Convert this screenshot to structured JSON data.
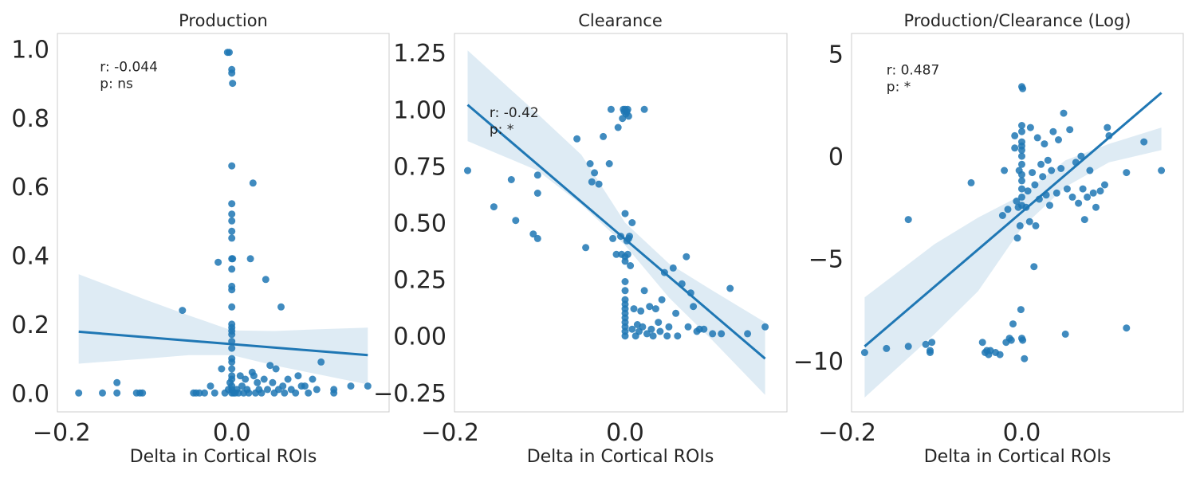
{
  "chart_data": [
    {
      "type": "scatter",
      "title": "Production",
      "xlabel": "Delta in Cortical ROIs",
      "ylabel": "",
      "xlim": [
        -0.205,
        0.185
      ],
      "ylim": [
        -0.055,
        1.045
      ],
      "xticks": [
        -0.2,
        0.0
      ],
      "xtick_labels": [
        "−0.2",
        "0.0"
      ],
      "yticks": [
        0.0,
        0.2,
        0.4,
        0.6,
        0.8,
        1.0
      ],
      "ytick_labels": [
        "0.0",
        "0.2",
        "0.4",
        "0.6",
        "0.8",
        "1.0"
      ],
      "grid": false,
      "annotation": {
        "r": "r: -0.044",
        "p": "p: ns",
        "x": -0.155,
        "y": 0.935
      },
      "regression": {
        "x": [
          -0.18,
          0.16
        ],
        "y": [
          0.178,
          0.11
        ]
      },
      "ci_upper": {
        "x": [
          -0.18,
          -0.1,
          -0.05,
          0.0,
          0.05,
          0.1,
          0.16
        ],
        "y": [
          0.345,
          0.27,
          0.225,
          0.182,
          0.18,
          0.185,
          0.19
        ]
      },
      "ci_lower": {
        "x": [
          -0.18,
          -0.1,
          -0.05,
          0.0,
          0.05,
          0.1,
          0.16
        ],
        "y": [
          0.085,
          0.1,
          0.11,
          0.11,
          0.08,
          0.055,
          0.025
        ]
      },
      "points": [
        [
          -0.18,
          0.0
        ],
        [
          -0.152,
          0.0
        ],
        [
          -0.135,
          0.03
        ],
        [
          -0.135,
          0.0
        ],
        [
          -0.112,
          0.0
        ],
        [
          -0.108,
          0.0
        ],
        [
          -0.105,
          0.0
        ],
        [
          -0.058,
          0.24
        ],
        [
          -0.045,
          0.0
        ],
        [
          -0.042,
          0.0
        ],
        [
          -0.038,
          0.0
        ],
        [
          -0.032,
          0.0
        ],
        [
          -0.025,
          0.02
        ],
        [
          -0.02,
          0.0
        ],
        [
          -0.016,
          0.38
        ],
        [
          -0.012,
          0.07
        ],
        [
          -0.008,
          0.0
        ],
        [
          -0.005,
          0.99
        ],
        [
          -0.003,
          0.99
        ],
        [
          -0.004,
          0.01
        ],
        [
          -0.002,
          0.03
        ],
        [
          0.0,
          0.94
        ],
        [
          0.0,
          0.93
        ],
        [
          0.001,
          0.9
        ],
        [
          0.0,
          0.66
        ],
        [
          0.0,
          0.55
        ],
        [
          0.0,
          0.52
        ],
        [
          0.0,
          0.5
        ],
        [
          0.0,
          0.47
        ],
        [
          0.0,
          0.45
        ],
        [
          0.0,
          0.39
        ],
        [
          0.001,
          0.39
        ],
        [
          0.0,
          0.36
        ],
        [
          0.0,
          0.31
        ],
        [
          0.0,
          0.3
        ],
        [
          0.0,
          0.25
        ],
        [
          0.0,
          0.2
        ],
        [
          0.0,
          0.19
        ],
        [
          0.0,
          0.18
        ],
        [
          0.0,
          0.17
        ],
        [
          0.0,
          0.15
        ],
        [
          0.0,
          0.13
        ],
        [
          0.0,
          0.1
        ],
        [
          0.0,
          0.09
        ],
        [
          0.0,
          0.07
        ],
        [
          0.0,
          0.05
        ],
        [
          0.0,
          0.04
        ],
        [
          0.0,
          0.02
        ],
        [
          0.0,
          0.01
        ],
        [
          0.0,
          0.0
        ],
        [
          0.002,
          0.0
        ],
        [
          0.004,
          0.0
        ],
        [
          0.006,
          0.01
        ],
        [
          0.008,
          0.0
        ],
        [
          0.01,
          0.05
        ],
        [
          0.012,
          0.02
        ],
        [
          0.014,
          0.0
        ],
        [
          0.016,
          0.04
        ],
        [
          0.018,
          0.01
        ],
        [
          0.02,
          0.0
        ],
        [
          0.022,
          0.39
        ],
        [
          0.024,
          0.06
        ],
        [
          0.025,
          0.61
        ],
        [
          0.026,
          0.05
        ],
        [
          0.028,
          0.0
        ],
        [
          0.03,
          0.03
        ],
        [
          0.032,
          0.01
        ],
        [
          0.035,
          0.0
        ],
        [
          0.038,
          0.04
        ],
        [
          0.04,
          0.33
        ],
        [
          0.042,
          0.01
        ],
        [
          0.045,
          0.08
        ],
        [
          0.048,
          0.03
        ],
        [
          0.05,
          0.0
        ],
        [
          0.052,
          0.07
        ],
        [
          0.055,
          0.01
        ],
        [
          0.058,
          0.25
        ],
        [
          0.06,
          0.02
        ],
        [
          0.062,
          0.0
        ],
        [
          0.066,
          0.04
        ],
        [
          0.07,
          0.01
        ],
        [
          0.075,
          0.0
        ],
        [
          0.078,
          0.05
        ],
        [
          0.082,
          0.02
        ],
        [
          0.086,
          0.02
        ],
        [
          0.09,
          0.0
        ],
        [
          0.095,
          0.04
        ],
        [
          0.1,
          0.01
        ],
        [
          0.105,
          0.09
        ],
        [
          0.12,
          0.01
        ],
        [
          0.12,
          0.0
        ],
        [
          0.14,
          0.02
        ],
        [
          0.16,
          0.02
        ]
      ]
    },
    {
      "type": "scatter",
      "title": "Clearance",
      "xlabel": "Delta in Cortical ROIs",
      "ylabel": "",
      "xlim": [
        -0.195,
        0.185
      ],
      "ylim": [
        -0.335,
        1.335
      ],
      "xticks": [
        -0.2,
        0.0
      ],
      "xtick_labels": [
        "−0.2",
        "0.0"
      ],
      "yticks": [
        -0.25,
        0.0,
        0.25,
        0.5,
        0.75,
        1.0,
        1.25
      ],
      "ytick_labels": [
        "−0.25",
        "0.00",
        "0.25",
        "0.50",
        "0.75",
        "1.00",
        "1.25"
      ],
      "grid": false,
      "annotation": {
        "r": "r: -0.42",
        "p": "p: *",
        "x": -0.155,
        "y": 0.965
      },
      "regression": {
        "x": [
          -0.18,
          0.16
        ],
        "y": [
          1.02,
          -0.1
        ]
      },
      "ci_upper": {
        "x": [
          -0.18,
          -0.1,
          -0.05,
          0.0,
          0.05,
          0.1,
          0.16
        ],
        "y": [
          1.26,
          0.98,
          0.8,
          0.5,
          0.32,
          0.2,
          0.06
        ]
      },
      "ci_lower": {
        "x": [
          -0.18,
          -0.1,
          -0.05,
          0.0,
          0.05,
          0.1,
          0.16
        ],
        "y": [
          0.86,
          0.73,
          0.58,
          0.4,
          0.17,
          -0.02,
          -0.26
        ]
      },
      "points": [
        [
          -0.18,
          0.73
        ],
        [
          -0.15,
          0.57
        ],
        [
          -0.13,
          0.69
        ],
        [
          -0.125,
          0.51
        ],
        [
          -0.105,
          0.45
        ],
        [
          -0.1,
          0.43
        ],
        [
          -0.1,
          0.71
        ],
        [
          -0.1,
          0.63
        ],
        [
          -0.055,
          0.87
        ],
        [
          -0.045,
          0.39
        ],
        [
          -0.04,
          0.76
        ],
        [
          -0.038,
          0.68
        ],
        [
          -0.035,
          0.72
        ],
        [
          -0.03,
          0.67
        ],
        [
          -0.025,
          0.88
        ],
        [
          -0.018,
          0.76
        ],
        [
          -0.016,
          1.0
        ],
        [
          -0.014,
          0.43
        ],
        [
          -0.01,
          0.36
        ],
        [
          -0.008,
          0.92
        ],
        [
          -0.005,
          0.44
        ],
        [
          -0.004,
          0.36
        ],
        [
          -0.003,
          0.96
        ],
        [
          -0.002,
          1.0
        ],
        [
          -0.001,
          0.99
        ],
        [
          0.0,
          1.0
        ],
        [
          0.001,
          0.98
        ],
        [
          0.002,
          0.99
        ],
        [
          0.003,
          1.0
        ],
        [
          0.004,
          0.97
        ],
        [
          0.0,
          0.54
        ],
        [
          0.002,
          0.42
        ],
        [
          0.004,
          0.43
        ],
        [
          0.0,
          0.35
        ],
        [
          0.0,
          0.33
        ],
        [
          0.0,
          0.24
        ],
        [
          0.0,
          0.2
        ],
        [
          0.0,
          0.16
        ],
        [
          0.0,
          0.14
        ],
        [
          0.0,
          0.12
        ],
        [
          0.0,
          0.1
        ],
        [
          0.0,
          0.08
        ],
        [
          0.0,
          0.06
        ],
        [
          0.0,
          0.04
        ],
        [
          0.0,
          0.02
        ],
        [
          0.0,
          0.0
        ],
        [
          0.003,
          0.36
        ],
        [
          0.005,
          0.44
        ],
        [
          0.006,
          0.31
        ],
        [
          0.008,
          0.5
        ],
        [
          0.008,
          0.03
        ],
        [
          0.01,
          0.12
        ],
        [
          0.012,
          0.0
        ],
        [
          0.014,
          0.05
        ],
        [
          0.016,
          0.02
        ],
        [
          0.018,
          0.11
        ],
        [
          0.02,
          0.04
        ],
        [
          0.022,
          1.0
        ],
        [
          0.022,
          0.2
        ],
        [
          0.025,
          0.01
        ],
        [
          0.028,
          0.13
        ],
        [
          0.03,
          0.03
        ],
        [
          0.032,
          0.0
        ],
        [
          0.035,
          0.12
        ],
        [
          0.038,
          0.06
        ],
        [
          0.04,
          0.02
        ],
        [
          0.042,
          0.16
        ],
        [
          0.045,
          0.28
        ],
        [
          0.048,
          0.0
        ],
        [
          0.05,
          0.04
        ],
        [
          0.055,
          0.3
        ],
        [
          0.058,
          0.1
        ],
        [
          0.06,
          0.0
        ],
        [
          0.065,
          0.23
        ],
        [
          0.07,
          0.35
        ],
        [
          0.072,
          0.04
        ],
        [
          0.075,
          0.19
        ],
        [
          0.078,
          0.13
        ],
        [
          0.082,
          0.02
        ],
        [
          0.085,
          0.03
        ],
        [
          0.09,
          0.03
        ],
        [
          0.1,
          0.01
        ],
        [
          0.11,
          0.01
        ],
        [
          0.12,
          0.21
        ],
        [
          0.14,
          0.01
        ],
        [
          0.16,
          0.04
        ]
      ]
    },
    {
      "type": "scatter",
      "title": "Production/Clearance (Log)",
      "xlabel": "Delta in Cortical ROIs",
      "ylabel": "",
      "xlim": [
        -0.195,
        0.185
      ],
      "ylim": [
        -12.5,
        6.0
      ],
      "xticks": [
        -0.2,
        0.0
      ],
      "xtick_labels": [
        "−0.2",
        "0.0"
      ],
      "yticks": [
        -10,
        -5,
        0,
        5
      ],
      "ytick_labels": [
        "−10",
        "−5",
        "0",
        "5"
      ],
      "grid": false,
      "annotation": {
        "r": "r: 0.487",
        "p": "p: *",
        "x": -0.155,
        "y": 4.0
      },
      "regression": {
        "x": [
          -0.18,
          0.16
        ],
        "y": [
          -9.3,
          3.1
        ]
      },
      "ci_upper": {
        "x": [
          -0.18,
          -0.1,
          -0.05,
          0.0,
          0.05,
          0.1,
          0.16
        ],
        "y": [
          -6.9,
          -4.3,
          -3.0,
          -1.9,
          -0.2,
          0.6,
          1.4
        ]
      },
      "ci_lower": {
        "x": [
          -0.18,
          -0.1,
          -0.05,
          0.0,
          0.05,
          0.1,
          0.16
        ],
        "y": [
          -11.8,
          -8.7,
          -6.6,
          -3.5,
          -1.5,
          -0.3,
          0.3
        ]
      },
      "points": [
        [
          -0.18,
          -9.6
        ],
        [
          -0.155,
          -9.4
        ],
        [
          -0.13,
          -3.1
        ],
        [
          -0.13,
          -9.3
        ],
        [
          -0.11,
          -9.2
        ],
        [
          -0.105,
          -9.5
        ],
        [
          -0.105,
          -9.6
        ],
        [
          -0.103,
          -9.1
        ],
        [
          -0.058,
          -1.3
        ],
        [
          -0.045,
          -9.1
        ],
        [
          -0.042,
          -9.6
        ],
        [
          -0.04,
          -9.5
        ],
        [
          -0.038,
          -9.7
        ],
        [
          -0.036,
          -9.5
        ],
        [
          -0.03,
          -9.6
        ],
        [
          -0.025,
          -9.7
        ],
        [
          -0.022,
          -2.9
        ],
        [
          -0.02,
          -0.7
        ],
        [
          -0.018,
          -9.1
        ],
        [
          -0.016,
          -2.6
        ],
        [
          -0.014,
          -8.9
        ],
        [
          -0.012,
          -9.0
        ],
        [
          -0.01,
          -8.2
        ],
        [
          -0.008,
          1.0
        ],
        [
          -0.008,
          0.4
        ],
        [
          -0.006,
          -2.2
        ],
        [
          -0.005,
          -4.0
        ],
        [
          -0.004,
          -2.5
        ],
        [
          -0.003,
          -0.7
        ],
        [
          -0.002,
          -3.4
        ],
        [
          -0.001,
          -7.5
        ],
        [
          0.0,
          3.4
        ],
        [
          0.001,
          3.3
        ],
        [
          0.0,
          1.5
        ],
        [
          0.0,
          1.2
        ],
        [
          0.0,
          0.7
        ],
        [
          0.0,
          0.5
        ],
        [
          0.0,
          0.3
        ],
        [
          0.0,
          0.0
        ],
        [
          0.0,
          -0.4
        ],
        [
          0.0,
          -0.9
        ],
        [
          0.0,
          -1.2
        ],
        [
          0.0,
          -1.6
        ],
        [
          0.0,
          -2.0
        ],
        [
          0.0,
          -2.4
        ],
        [
          0.0,
          -8.9
        ],
        [
          0.001,
          -9.0
        ],
        [
          0.003,
          -9.9
        ],
        [
          0.005,
          -2.5
        ],
        [
          0.007,
          -1.7
        ],
        [
          0.009,
          -3.2
        ],
        [
          0.01,
          1.4
        ],
        [
          0.012,
          -0.8
        ],
        [
          0.014,
          -5.4
        ],
        [
          0.015,
          -1.4
        ],
        [
          0.016,
          -3.4
        ],
        [
          0.018,
          0.9
        ],
        [
          0.02,
          -2.1
        ],
        [
          0.022,
          -0.4
        ],
        [
          0.024,
          -1.0
        ],
        [
          0.026,
          0.6
        ],
        [
          0.028,
          -1.9
        ],
        [
          0.03,
          -0.2
        ],
        [
          0.032,
          -2.4
        ],
        [
          0.034,
          -0.7
        ],
        [
          0.036,
          1.2
        ],
        [
          0.04,
          -1.8
        ],
        [
          0.042,
          0.8
        ],
        [
          0.045,
          -0.6
        ],
        [
          0.048,
          2.1
        ],
        [
          0.05,
          -8.7
        ],
        [
          0.052,
          -1.6
        ],
        [
          0.055,
          1.3
        ],
        [
          0.058,
          -2.0
        ],
        [
          0.062,
          -0.3
        ],
        [
          0.065,
          -2.3
        ],
        [
          0.068,
          0.0
        ],
        [
          0.07,
          -1.6
        ],
        [
          0.072,
          -3.1
        ],
        [
          0.075,
          -2.0
        ],
        [
          0.078,
          -0.7
        ],
        [
          0.082,
          -1.8
        ],
        [
          0.085,
          -2.5
        ],
        [
          0.09,
          -1.7
        ],
        [
          0.095,
          -1.4
        ],
        [
          0.098,
          1.4
        ],
        [
          0.1,
          1.0
        ],
        [
          0.12,
          -0.8
        ],
        [
          0.12,
          -8.4
        ],
        [
          0.14,
          0.7
        ],
        [
          0.16,
          -0.7
        ]
      ]
    }
  ]
}
